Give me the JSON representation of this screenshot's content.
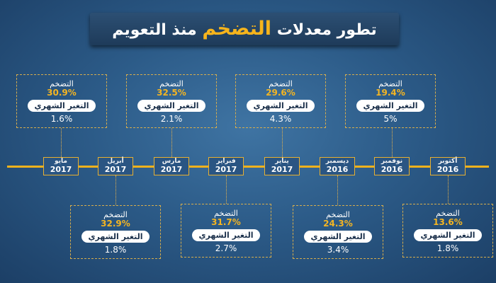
{
  "title": {
    "prefix": "تطور معدلات",
    "highlight": "التضخم",
    "suffix": "منذ التعويم"
  },
  "labels": {
    "inflation": "التضخم",
    "monthly": "التغير الشهري"
  },
  "colors": {
    "accent": "#f0b21d",
    "background": "#2c5b88",
    "pill": "#ffffff"
  },
  "entries": [
    {
      "month": "أكتوبر",
      "year": "2016",
      "inflation": "13.6%",
      "monthly": "1.8%"
    },
    {
      "month": "نوفمبر",
      "year": "2016",
      "inflation": "19.4%",
      "monthly": "5%"
    },
    {
      "month": "ديسمبر",
      "year": "2016",
      "inflation": "24.3%",
      "monthly": "3.4%"
    },
    {
      "month": "يناير",
      "year": "2017",
      "inflation": "29.6%",
      "monthly": "4.3%"
    },
    {
      "month": "فبراير",
      "year": "2017",
      "inflation": "31.7%",
      "monthly": "2.7%"
    },
    {
      "month": "مارس",
      "year": "2017",
      "inflation": "32.5%",
      "monthly": "2.1%"
    },
    {
      "month": "أبريل",
      "year": "2017",
      "inflation": "32.9%",
      "monthly": "1.8%"
    },
    {
      "month": "مايو",
      "year": "2017",
      "inflation": "30.9%",
      "monthly": "1.6%"
    }
  ]
}
